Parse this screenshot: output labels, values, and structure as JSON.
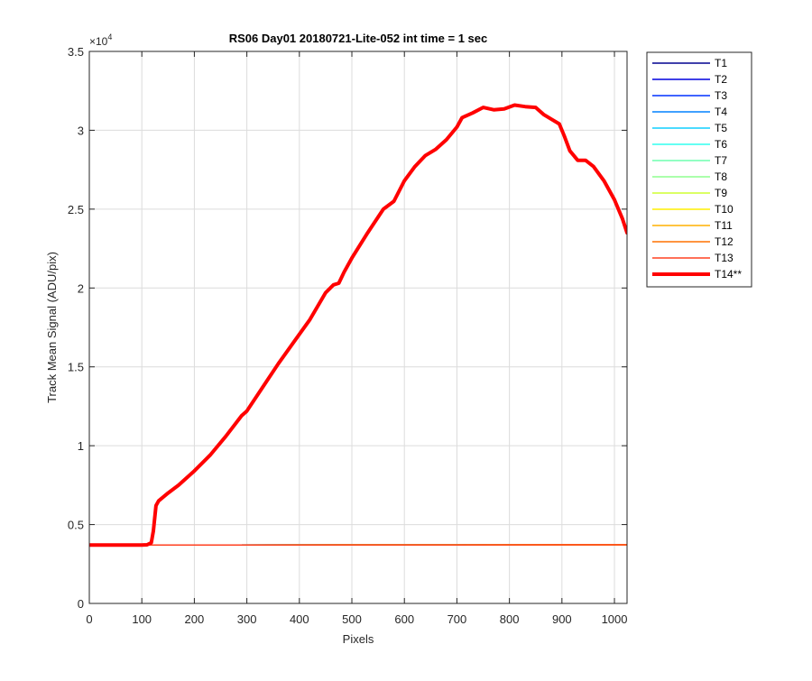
{
  "chart_data": {
    "type": "line",
    "title": "RS06 Day01 20180721-Lite-052 int time = 1 sec",
    "xlabel": "Pixels",
    "ylabel": "Track Mean Signal (ADU/pix)",
    "xlim": [
      0,
      1024
    ],
    "ylim": [
      0,
      35000
    ],
    "x_ticks": [
      0,
      100,
      200,
      300,
      400,
      500,
      600,
      700,
      800,
      900,
      1000
    ],
    "y_ticks": [
      0,
      5000,
      10000,
      15000,
      20000,
      25000,
      30000,
      35000
    ],
    "y_tick_labels": [
      "0",
      "0.5",
      "1",
      "1.5",
      "2",
      "2.5",
      "3",
      "3.5"
    ],
    "y_exponent_base": "×10",
    "y_exponent_power": "4",
    "grid": true,
    "legend_position": "outside-right-top",
    "series": [
      {
        "name": "T1",
        "color": "#00008f",
        "width": 1.5,
        "points": [
          [
            0,
            3700
          ],
          [
            1024,
            3720
          ]
        ]
      },
      {
        "name": "T2",
        "color": "#0000df",
        "width": 1.5,
        "points": [
          [
            0,
            3700
          ],
          [
            1024,
            3720
          ]
        ]
      },
      {
        "name": "T3",
        "color": "#0030ff",
        "width": 1.5,
        "points": [
          [
            0,
            3700
          ],
          [
            1024,
            3720
          ]
        ]
      },
      {
        "name": "T4",
        "color": "#0080ff",
        "width": 1.5,
        "points": [
          [
            0,
            3700
          ],
          [
            1024,
            3720
          ]
        ]
      },
      {
        "name": "T5",
        "color": "#10cfff",
        "width": 1.5,
        "points": [
          [
            0,
            3700
          ],
          [
            1024,
            3720
          ]
        ]
      },
      {
        "name": "T6",
        "color": "#30ffef",
        "width": 1.5,
        "points": [
          [
            0,
            3700
          ],
          [
            1024,
            3720
          ]
        ]
      },
      {
        "name": "T7",
        "color": "#6fffaf",
        "width": 1.5,
        "points": [
          [
            0,
            3700
          ],
          [
            1024,
            3720
          ]
        ]
      },
      {
        "name": "T8",
        "color": "#8fff8f",
        "width": 1.5,
        "points": [
          [
            0,
            3700
          ],
          [
            1024,
            3720
          ]
        ]
      },
      {
        "name": "T9",
        "color": "#cfff30",
        "width": 1.5,
        "points": [
          [
            0,
            3700
          ],
          [
            1024,
            3720
          ]
        ]
      },
      {
        "name": "T10",
        "color": "#ffef00",
        "width": 1.5,
        "points": [
          [
            0,
            3700
          ],
          [
            1024,
            3720
          ]
        ]
      },
      {
        "name": "T11",
        "color": "#ffb000",
        "width": 1.5,
        "points": [
          [
            0,
            3700
          ],
          [
            1024,
            3720
          ]
        ]
      },
      {
        "name": "T12",
        "color": "#ff7000",
        "width": 1.5,
        "points": [
          [
            0,
            3700
          ],
          [
            1024,
            3720
          ]
        ]
      },
      {
        "name": "T13",
        "color": "#ff4020",
        "width": 1.5,
        "points": [
          [
            0,
            3700
          ],
          [
            1024,
            3720
          ]
        ]
      },
      {
        "name": "T14**",
        "color": "#ff0000",
        "width": 4,
        "points": [
          [
            0,
            3700
          ],
          [
            100,
            3700
          ],
          [
            110,
            3720
          ],
          [
            118,
            3850
          ],
          [
            122,
            4600
          ],
          [
            127,
            6200
          ],
          [
            132,
            6500
          ],
          [
            150,
            7000
          ],
          [
            170,
            7500
          ],
          [
            200,
            8400
          ],
          [
            230,
            9400
          ],
          [
            260,
            10600
          ],
          [
            290,
            11900
          ],
          [
            300,
            12200
          ],
          [
            330,
            13700
          ],
          [
            360,
            15200
          ],
          [
            390,
            16600
          ],
          [
            420,
            18000
          ],
          [
            450,
            19700
          ],
          [
            465,
            20200
          ],
          [
            475,
            20300
          ],
          [
            485,
            21000
          ],
          [
            500,
            21900
          ],
          [
            530,
            23500
          ],
          [
            560,
            25000
          ],
          [
            580,
            25500
          ],
          [
            600,
            26800
          ],
          [
            620,
            27700
          ],
          [
            640,
            28400
          ],
          [
            660,
            28800
          ],
          [
            680,
            29400
          ],
          [
            690,
            29800
          ],
          [
            700,
            30200
          ],
          [
            710,
            30800
          ],
          [
            730,
            31100
          ],
          [
            750,
            31450
          ],
          [
            770,
            31300
          ],
          [
            790,
            31350
          ],
          [
            810,
            31600
          ],
          [
            830,
            31500
          ],
          [
            850,
            31450
          ],
          [
            865,
            31000
          ],
          [
            880,
            30700
          ],
          [
            895,
            30400
          ],
          [
            905,
            29600
          ],
          [
            915,
            28700
          ],
          [
            930,
            28100
          ],
          [
            945,
            28100
          ],
          [
            960,
            27700
          ],
          [
            980,
            26800
          ],
          [
            1000,
            25600
          ],
          [
            1015,
            24400
          ],
          [
            1024,
            23500
          ]
        ]
      }
    ]
  }
}
